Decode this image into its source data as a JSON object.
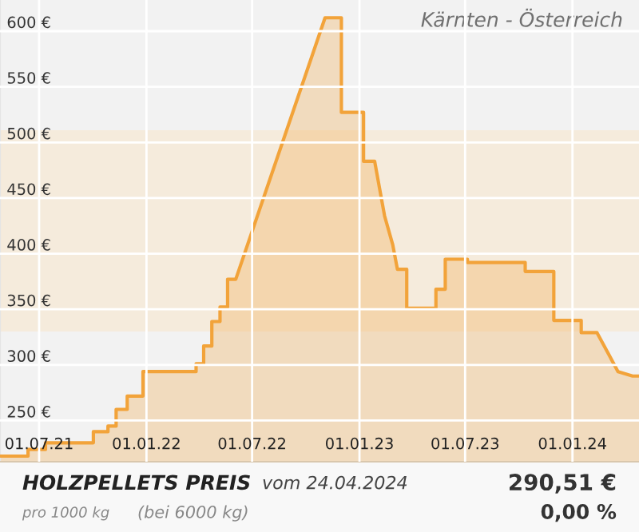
{
  "chart_data": {
    "type": "area",
    "title": "Kärnten - Österreich",
    "x": [
      "2021-04-25",
      "2021-06-12",
      "2021-06-12",
      "2021-07-12",
      "2021-07-12",
      "2021-10-02",
      "2021-10-02",
      "2021-10-27",
      "2021-10-27",
      "2021-11-10",
      "2021-11-10",
      "2021-11-29",
      "2021-11-29",
      "2021-12-26",
      "2021-12-26",
      "2022-03-27",
      "2022-03-27",
      "2022-04-09",
      "2022-04-09",
      "2022-04-23",
      "2022-04-23",
      "2022-05-07",
      "2022-05-07",
      "2022-05-20",
      "2022-05-20",
      "2022-06-03",
      "2022-11-03",
      "2022-12-01",
      "2022-12-01",
      "2023-01-08",
      "2023-01-08",
      "2023-01-27",
      "2023-02-13",
      "2023-02-27",
      "2023-03-07",
      "2023-03-23",
      "2023-03-23",
      "2023-05-12",
      "2023-05-12",
      "2023-05-28",
      "2023-05-28",
      "2023-07-05",
      "2023-07-05",
      "2023-10-12",
      "2023-10-12",
      "2023-11-30",
      "2023-11-30",
      "2024-01-16",
      "2024-01-16",
      "2024-02-12",
      "2024-03-19",
      "2024-04-13",
      "2024-04-24"
    ],
    "series": [
      {
        "color": "#f2a33a",
        "values": [
          218,
          218,
          224,
          224,
          230,
          230,
          240,
          240,
          245,
          245,
          260,
          260,
          272,
          272,
          294,
          294,
          301,
          301,
          317,
          317,
          339,
          339,
          352,
          352,
          377,
          377,
          612,
          612,
          527,
          527,
          483,
          483,
          434,
          408,
          386,
          386,
          351,
          351,
          368,
          368,
          395,
          395,
          392,
          392,
          384,
          384,
          340,
          340,
          329,
          329,
          294,
          290,
          290
        ]
      }
    ],
    "xlim": [
      "2021-04-25",
      "2024-04-24"
    ],
    "xticks": [
      {
        "value": "2021-07-01",
        "label": "01.07.21"
      },
      {
        "value": "2022-01-01",
        "label": "01.01.22"
      },
      {
        "value": "2022-07-01",
        "label": "01.07.22"
      },
      {
        "value": "2023-01-01",
        "label": "01.01.23"
      },
      {
        "value": "2023-07-01",
        "label": "01.07.23"
      },
      {
        "value": "2024-01-01",
        "label": "01.01.24"
      }
    ],
    "ylim": [
      213,
      628
    ],
    "yticks": [
      {
        "value": 250,
        "label": "250 €"
      },
      {
        "value": 300,
        "label": "300 €"
      },
      {
        "value": 350,
        "label": "350 €"
      },
      {
        "value": 400,
        "label": "400 €"
      },
      {
        "value": 450,
        "label": "450 €"
      },
      {
        "value": 500,
        "label": "500 €"
      },
      {
        "value": 550,
        "label": "550 €"
      },
      {
        "value": 600,
        "label": "600 €"
      }
    ],
    "bands": [
      {
        "axis": "y",
        "from": 330,
        "to": 511,
        "color": "#f5ebdc"
      }
    ],
    "grid": true,
    "annotations": [
      "HOLZPELLETS PREIS",
      "vom 24.04.2024",
      "pro 1000 kg",
      "(bei 6000 kg)",
      "290,51 €",
      "0,00 %"
    ]
  }
}
